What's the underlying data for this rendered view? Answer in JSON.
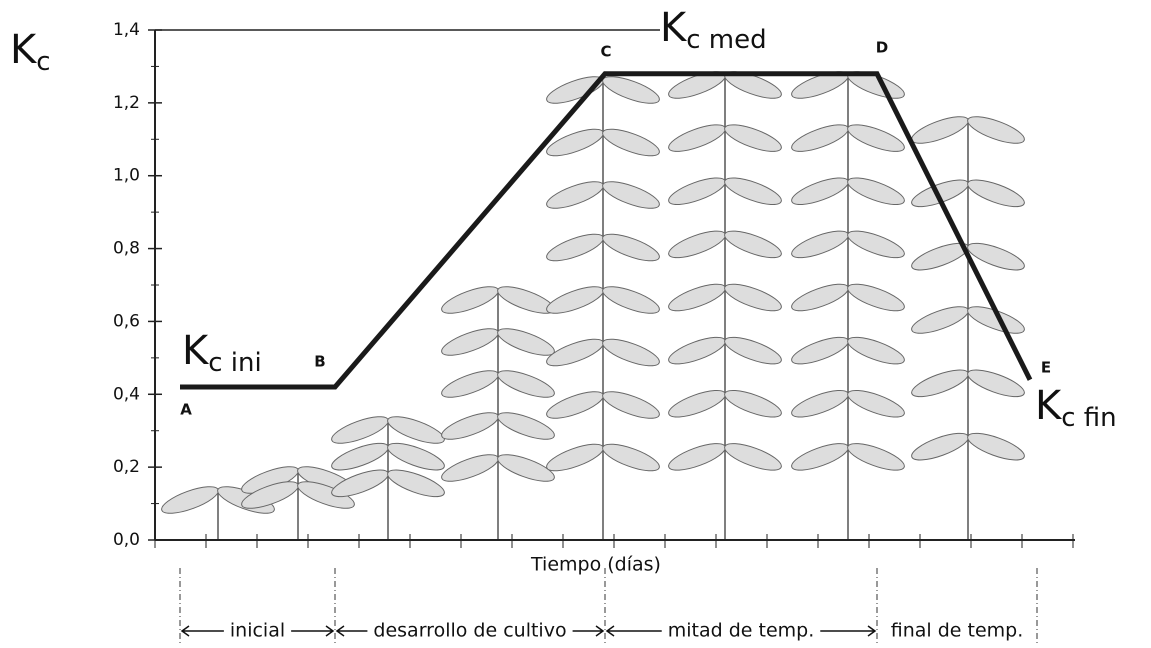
{
  "chart_data": {
    "type": "line",
    "y_label_main": "K",
    "y_label_sub": "c",
    "x_label": "Tiempo (días)",
    "categories": [
      "A",
      "B",
      "C",
      "D",
      "E"
    ],
    "values": [
      0.42,
      0.42,
      1.28,
      1.28,
      0.44
    ],
    "color": "#1a1a1a",
    "ylim": [
      0,
      1.4
    ],
    "yticks": [
      {
        "value": 0,
        "label": "0,0"
      },
      {
        "value": 0.2,
        "label": "0,2"
      },
      {
        "value": 0.4,
        "label": "0,4"
      },
      {
        "value": 0.6,
        "label": "0,6"
      },
      {
        "value": 0.8,
        "label": "0,8"
      },
      {
        "value": 1.0,
        "label": "1,0"
      },
      {
        "value": 1.2,
        "label": "1,2"
      },
      {
        "value": 1.4,
        "label": "1,4"
      }
    ],
    "annotations": [
      {
        "main": "K",
        "sub": "c ini"
      },
      {
        "main": "K",
        "sub": "c med"
      },
      {
        "main": "K",
        "sub": "c fin"
      }
    ],
    "stages": [
      "inicial",
      "desarrollo de cultivo",
      "mitad de temp.",
      "final de temp."
    ]
  }
}
